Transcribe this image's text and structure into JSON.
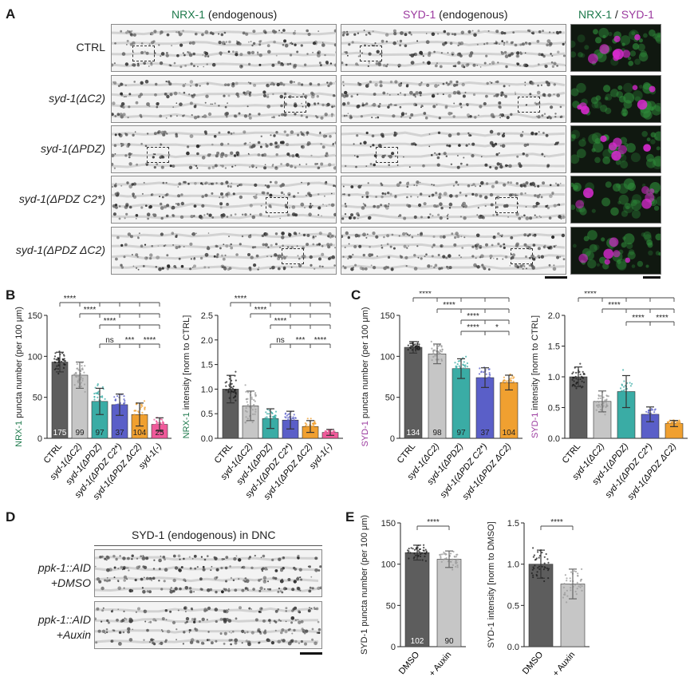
{
  "panel_letters": [
    "A",
    "B",
    "C",
    "D",
    "E"
  ],
  "panelA": {
    "col_titles": {
      "nrx": "NRX-1",
      "nrx_suffix": " (endogenous)",
      "syd": "SYD-1",
      "syd_suffix": " (endogenous)",
      "merge_a": "NRX-1",
      "merge_sep": " / ",
      "merge_b": "SYD-1"
    },
    "rows": [
      "CTRL",
      "syd-1(ΔC2)",
      "syd-1(ΔPDZ)",
      "syd-1(ΔPDZ C2*)",
      "syd-1(ΔPDZ ΔC2)"
    ]
  },
  "panelD": {
    "title": "SYD-1 (endogenous) in DNC",
    "rows": [
      {
        "line1": "ppk-1::AID",
        "line2": "+DMSO"
      },
      {
        "line1": "ppk-1::AID",
        "line2": "+Auxin"
      }
    ]
  },
  "colors": {
    "green": "#1e7a4c",
    "purple": "#9b3a9f",
    "dark": "#5d5d5d",
    "light": "#c6c6c6",
    "teal": "#3aaca5",
    "blue": "#5a5fc8",
    "orange": "#f0a030",
    "pink": "#ef5a9a"
  },
  "chart_data": [
    {
      "id": "B1",
      "type": "bar",
      "ylabel_a": "NRX-1",
      "ylabel_b": " puncta number (per 100 μm)",
      "ylim": [
        0,
        150
      ],
      "yticks": [
        0,
        50,
        100,
        150
      ],
      "categories": [
        "CTRL",
        "syd-1(ΔC2)",
        "syd-1(ΔPDZ)",
        "syd-1(ΔPDZ C2*)",
        "syd-1(ΔPDZ ΔC2)",
        "syd-1(-)"
      ],
      "values": [
        93,
        77,
        45,
        41,
        29,
        17
      ],
      "errors": [
        12,
        16,
        16,
        13,
        14,
        8
      ],
      "n": [
        "175",
        "99",
        "97",
        "37",
        "104",
        "25"
      ],
      "colors": [
        "#5d5d5d",
        "#c6c6c6",
        "#3aaca5",
        "#5a5fc8",
        "#f0a030",
        "#ef5a9a"
      ],
      "sig": [
        {
          "from": 0,
          "to": [
            1,
            2,
            3,
            4,
            5
          ],
          "label": "****"
        },
        {
          "from": 1,
          "to": [
            2,
            3,
            4,
            5
          ],
          "label": "****"
        },
        {
          "from": 2,
          "to": [
            3,
            4,
            5
          ],
          "label": "****"
        },
        {
          "pair": [
            2,
            3
          ],
          "label": "ns"
        },
        {
          "pair": [
            3,
            4
          ],
          "label": "***"
        },
        {
          "pair": [
            4,
            5
          ],
          "label": "****"
        }
      ]
    },
    {
      "id": "B2",
      "type": "bar",
      "ylabel_a": "NRX-1",
      "ylabel_b": " intensity [norm to CTRL]",
      "ylim": [
        0,
        2.5
      ],
      "yticks": [
        "0.0",
        "0.5",
        "1.0",
        "1.5",
        "2.0",
        "2.5"
      ],
      "categories": [
        "CTRL",
        "syd-1(ΔC2)",
        "syd-1(ΔPDZ)",
        "syd-1(ΔPDZ C2*)",
        "syd-1(ΔPDZ ΔC2)",
        "syd-1(-)"
      ],
      "values": [
        1.0,
        0.66,
        0.4,
        0.37,
        0.24,
        0.12
      ],
      "errors": [
        0.28,
        0.3,
        0.2,
        0.18,
        0.12,
        0.06
      ],
      "colors": [
        "#5d5d5d",
        "#c6c6c6",
        "#3aaca5",
        "#5a5fc8",
        "#f0a030",
        "#ef5a9a"
      ],
      "sig": [
        {
          "from": 0,
          "to": [
            1,
            2,
            3,
            4,
            5
          ],
          "label": "****"
        },
        {
          "from": 1,
          "to": [
            2,
            3,
            4,
            5
          ],
          "label": "****"
        },
        {
          "from": 2,
          "to": [
            3,
            4,
            5
          ],
          "label": "****"
        },
        {
          "pair": [
            2,
            3
          ],
          "label": "ns"
        },
        {
          "pair": [
            3,
            4
          ],
          "label": "***"
        },
        {
          "pair": [
            4,
            5
          ],
          "label": "****"
        }
      ]
    },
    {
      "id": "C1",
      "type": "bar",
      "ylabel_a": "SYD-1",
      "ylabel_b": " puncta number (per 100 μm)",
      "ylim": [
        0,
        150
      ],
      "yticks": [
        0,
        50,
        100,
        150
      ],
      "categories": [
        "CTRL",
        "syd-1(ΔC2)",
        "syd-1(ΔPDZ)",
        "syd-1(ΔPDZ C2*)",
        "syd-1(ΔPDZ ΔC2)"
      ],
      "values": [
        111,
        103,
        85,
        74,
        68
      ],
      "errors": [
        7,
        12,
        12,
        12,
        9
      ],
      "n": [
        "134",
        "98",
        "97",
        "37",
        "104"
      ],
      "colors": [
        "#5d5d5d",
        "#c6c6c6",
        "#3aaca5",
        "#5a5fc8",
        "#f0a030"
      ],
      "sig": [
        {
          "from": 0,
          "to": [
            1,
            2,
            3,
            4
          ],
          "label": "****"
        },
        {
          "from": 1,
          "to": [
            2,
            3,
            4
          ],
          "label": "****"
        },
        {
          "from": 2,
          "to": [
            3,
            4
          ],
          "label": "****"
        },
        {
          "pair": [
            2,
            3
          ],
          "label": "****"
        },
        {
          "pair": [
            3,
            4
          ],
          "label": "*"
        }
      ]
    },
    {
      "id": "C2",
      "type": "bar",
      "ylabel_a": "SYD-1",
      "ylabel_b": " intensity [norm to CTRL]",
      "ylim": [
        0,
        2.0
      ],
      "yticks": [
        "0.0",
        "0.5",
        "1.0",
        "1.5",
        "2.0"
      ],
      "categories": [
        "CTRL",
        "syd-1(ΔC2)",
        "syd-1(ΔPDZ)",
        "syd-1(ΔPDZ C2*)",
        "syd-1(ΔPDZ ΔC2)"
      ],
      "values": [
        1.0,
        0.6,
        0.76,
        0.39,
        0.24
      ],
      "errors": [
        0.16,
        0.17,
        0.26,
        0.12,
        0.05
      ],
      "colors": [
        "#5d5d5d",
        "#c6c6c6",
        "#3aaca5",
        "#5a5fc8",
        "#f0a030"
      ],
      "sig": [
        {
          "from": 0,
          "to": [
            1,
            2,
            3,
            4
          ],
          "label": "****"
        },
        {
          "from": 1,
          "to": [
            2,
            3,
            4
          ],
          "label": "****"
        },
        {
          "pair": [
            2,
            3
          ],
          "label": "****"
        },
        {
          "pair": [
            3,
            4
          ],
          "label": "****"
        }
      ]
    },
    {
      "id": "E1",
      "type": "bar",
      "ylabel_a": "",
      "ylabel_b": "SYD-1 puncta number (per 100 μm)",
      "ylim": [
        0,
        150
      ],
      "yticks": [
        0,
        50,
        100,
        150
      ],
      "categories": [
        "DMSO",
        "+ Auxin"
      ],
      "values": [
        114,
        106
      ],
      "errors": [
        9,
        10
      ],
      "n": [
        "102",
        "90"
      ],
      "colors": [
        "#5d5d5d",
        "#c6c6c6"
      ],
      "sig": [
        {
          "pair": [
            0,
            1
          ],
          "label": "****"
        }
      ]
    },
    {
      "id": "E2",
      "type": "bar",
      "ylabel_a": "",
      "ylabel_b": "SYD-1 intensity [norm to DMSO]",
      "ylim": [
        0,
        1.5
      ],
      "yticks": [
        "0.0",
        "0.5",
        "1.0",
        "1.5"
      ],
      "categories": [
        "DMSO",
        "+ Auxin"
      ],
      "values": [
        1.0,
        0.76
      ],
      "errors": [
        0.17,
        0.18
      ],
      "colors": [
        "#5d5d5d",
        "#c6c6c6"
      ],
      "sig": [
        {
          "pair": [
            0,
            1
          ],
          "label": "****"
        }
      ]
    }
  ]
}
